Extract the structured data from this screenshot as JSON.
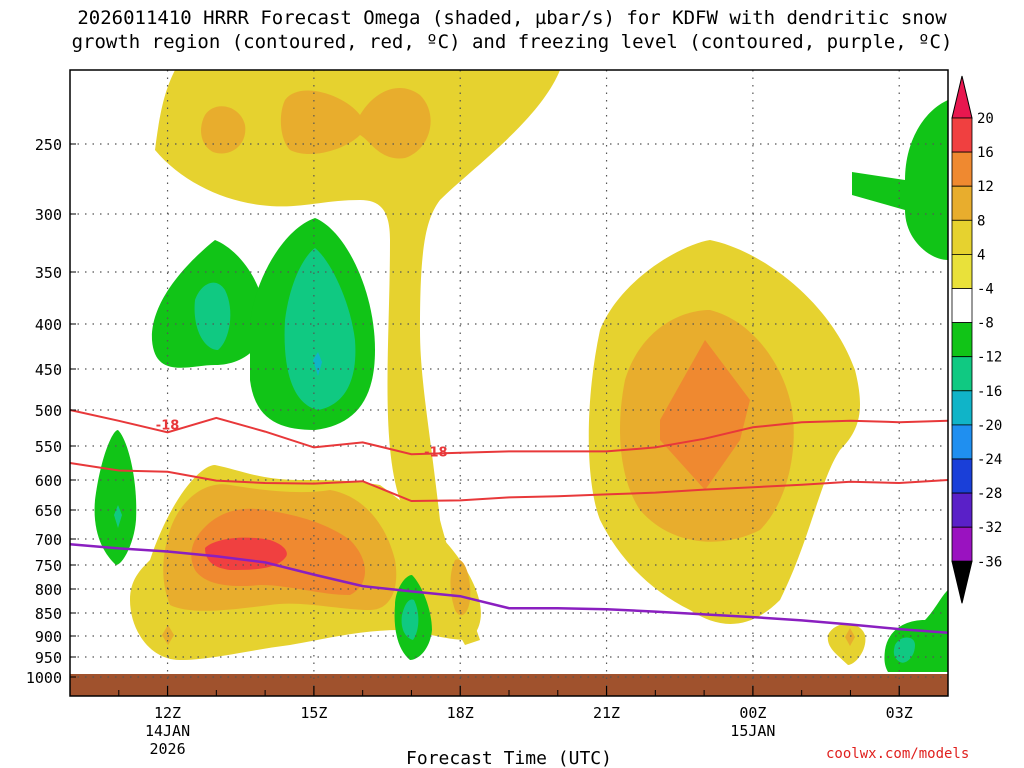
{
  "chart_data": {
    "type": "heatmap",
    "title_line1": "2026011410 HRRR Forecast Omega (shaded, µbar/s) for KDFW with dendritic snow",
    "title_line2": "growth region (contoured, red, ºC) and freezing level (contoured, purple, ºC)",
    "xlabel": "Forecast Time (UTC)",
    "x_ticks": [
      {
        "hour": 12,
        "label": "12Z",
        "sub1": "14JAN",
        "sub2": "2026"
      },
      {
        "hour": 15,
        "label": "15Z",
        "sub1": "",
        "sub2": ""
      },
      {
        "hour": 18,
        "label": "18Z",
        "sub1": "",
        "sub2": ""
      },
      {
        "hour": 21,
        "label": "21Z",
        "sub1": "",
        "sub2": ""
      },
      {
        "hour": 24,
        "label": "00Z",
        "sub1": "15JAN",
        "sub2": ""
      },
      {
        "hour": 27,
        "label": "03Z",
        "sub1": "",
        "sub2": ""
      }
    ],
    "x_range_hours": [
      10,
      28
    ],
    "y_ticks": [
      250,
      300,
      350,
      400,
      450,
      500,
      550,
      600,
      650,
      700,
      750,
      800,
      850,
      900,
      950,
      1000
    ],
    "y_range_hpa": [
      200,
      1020
    ],
    "colorbar": {
      "labels": [
        "20",
        "16",
        "12",
        "8",
        "4",
        "-4",
        "-8",
        "-12",
        "-16",
        "-20",
        "-24",
        "-28",
        "-32",
        "-36"
      ],
      "colors": [
        "#e8174f",
        "#f04040",
        "#ef8930",
        "#e8ad2d",
        "#e6d22f",
        "#e9e13a",
        "#ffffff",
        "#11c417",
        "#10c982",
        "#10b4c8",
        "#1f8ff0",
        "#1a3fd8",
        "#5a20c8",
        "#9a12c0",
        "#a8a8a8",
        "#000000"
      ]
    },
    "dgz_contours": [
      {
        "value": -18,
        "label": "-18",
        "points": [
          [
            10,
            500
          ],
          [
            11,
            515
          ],
          [
            12,
            531
          ],
          [
            13,
            511
          ],
          [
            14,
            530
          ],
          [
            15,
            552
          ],
          [
            16,
            545
          ],
          [
            17,
            562
          ],
          [
            18,
            560
          ],
          [
            19,
            558
          ],
          [
            20,
            558
          ],
          [
            21,
            558
          ],
          [
            22,
            552
          ],
          [
            23,
            540
          ],
          [
            24,
            524
          ],
          [
            25,
            517
          ],
          [
            26,
            515
          ],
          [
            27,
            517
          ],
          [
            28,
            515
          ]
        ]
      },
      {
        "value": -12,
        "label": "",
        "points": [
          [
            10,
            575
          ],
          [
            11,
            586
          ],
          [
            12,
            588
          ],
          [
            13,
            601
          ],
          [
            14,
            605
          ],
          [
            15,
            606
          ],
          [
            16,
            602
          ],
          [
            17,
            635
          ],
          [
            18,
            634
          ],
          [
            19,
            629
          ],
          [
            20,
            627
          ],
          [
            21,
            624
          ],
          [
            22,
            621
          ],
          [
            23,
            616
          ],
          [
            24,
            612
          ],
          [
            25,
            608
          ],
          [
            26,
            603
          ],
          [
            27,
            605
          ],
          [
            28,
            600
          ]
        ]
      }
    ],
    "freezing_level": {
      "value": 0,
      "points": [
        [
          10,
          710
        ],
        [
          11,
          718
        ],
        [
          12,
          724
        ],
        [
          13,
          733
        ],
        [
          14,
          745
        ],
        [
          15,
          770
        ],
        [
          16,
          794
        ],
        [
          17,
          805
        ],
        [
          18,
          815
        ],
        [
          19,
          840
        ],
        [
          20,
          840
        ],
        [
          21,
          842
        ],
        [
          22,
          847
        ],
        [
          23,
          853
        ],
        [
          24,
          859
        ],
        [
          25,
          866
        ],
        [
          26,
          875
        ],
        [
          27,
          885
        ],
        [
          28,
          893
        ]
      ]
    },
    "omega_regions": [
      {
        "category": "4",
        "name": "upper-yellow-plume",
        "value_range": [
          4,
          8
        ]
      },
      {
        "category": "8",
        "name": "upper-orange-core",
        "value_range": [
          8,
          12
        ]
      },
      {
        "category": "-8",
        "name": "upper-green-updraft",
        "value_range": [
          -12,
          -8
        ]
      },
      {
        "category": "16",
        "name": "lower-red-core",
        "value_range": [
          16,
          20
        ]
      },
      {
        "category": "12",
        "name": "evening-orange-core",
        "value_range": [
          12,
          16
        ]
      }
    ],
    "surface_fill_color": "#a0522d"
  },
  "credit": "coolwx.com/models"
}
